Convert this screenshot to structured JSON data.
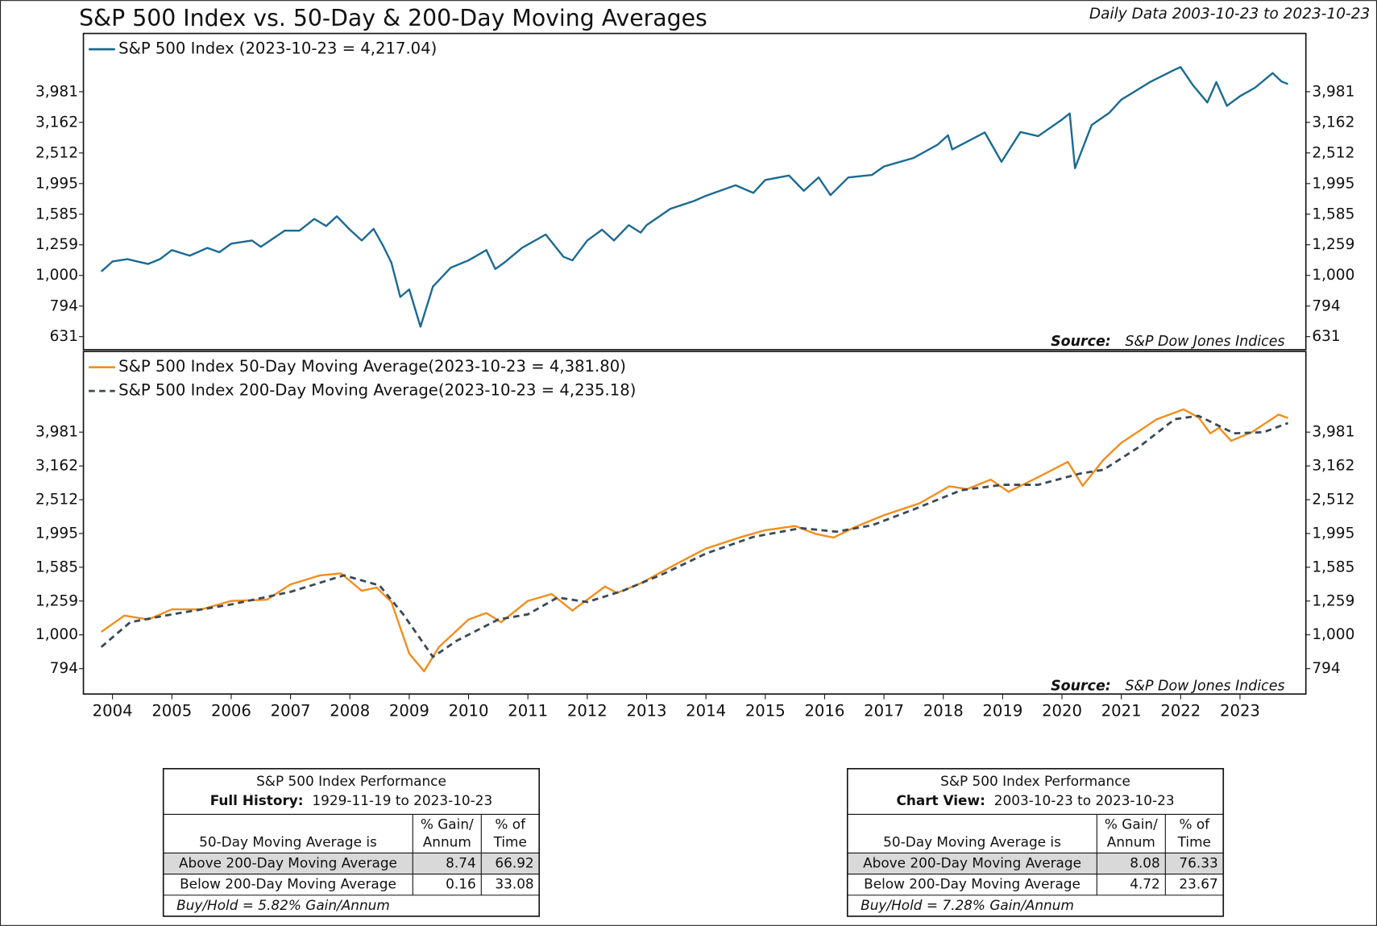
{
  "header": {
    "title": "S&P 500 Index vs. 50-Day & 200-Day Moving Averages",
    "subtitle": "Daily Data 2003-10-23 to 2023-10-23"
  },
  "chart_data": [
    {
      "type": "line",
      "yscale": "log",
      "xlim": [
        2003.51,
        2024.11
      ],
      "ylim": [
        572,
        6170
      ],
      "yticks": [
        631,
        794,
        {
          "value": 1000,
          "label": "1,000"
        },
        {
          "value": 1259,
          "label": "1,259"
        },
        {
          "value": 1585,
          "label": "1,585"
        },
        {
          "value": 1995,
          "label": "1,995"
        },
        {
          "value": 2512,
          "label": "2,512"
        },
        {
          "value": 3162,
          "label": "3,162"
        },
        {
          "value": 3981,
          "label": "3,981"
        }
      ],
      "source_label": "Source:",
      "source": "S&P Dow Jones Indices",
      "series": [
        {
          "name": "S&P 500 Index (2023-10-23 = 4,217.04)",
          "color": "#1b6a92",
          "style": "solid",
          "x": [
            2003.81,
            2004.0,
            2004.25,
            2004.6,
            2004.8,
            2005.0,
            2005.3,
            2005.6,
            2005.8,
            2006.0,
            2006.35,
            2006.5,
            2006.9,
            2007.15,
            2007.4,
            2007.6,
            2007.78,
            2008.0,
            2008.2,
            2008.4,
            2008.55,
            2008.7,
            2008.85,
            2009.0,
            2009.19,
            2009.4,
            2009.7,
            2010.0,
            2010.3,
            2010.45,
            2010.6,
            2010.9,
            2011.3,
            2011.6,
            2011.75,
            2012.0,
            2012.25,
            2012.45,
            2012.7,
            2012.9,
            2013.0,
            2013.4,
            2013.8,
            2014.0,
            2014.5,
            2014.8,
            2015.0,
            2015.4,
            2015.65,
            2015.9,
            2016.1,
            2016.4,
            2016.8,
            2017.0,
            2017.5,
            2017.9,
            2018.08,
            2018.15,
            2018.7,
            2018.98,
            2019.3,
            2019.6,
            2020.0,
            2020.13,
            2020.22,
            2020.5,
            2020.8,
            2021.0,
            2021.5,
            2021.9,
            2022.0,
            2022.2,
            2022.45,
            2022.6,
            2022.78,
            2023.0,
            2023.25,
            2023.55,
            2023.7,
            2023.81
          ],
          "values": [
            1030,
            1110,
            1130,
            1090,
            1130,
            1210,
            1160,
            1230,
            1190,
            1270,
            1300,
            1240,
            1400,
            1400,
            1530,
            1450,
            1560,
            1410,
            1300,
            1420,
            1260,
            1100,
            850,
            900,
            680,
            920,
            1060,
            1120,
            1210,
            1050,
            1100,
            1230,
            1360,
            1150,
            1120,
            1300,
            1410,
            1300,
            1460,
            1380,
            1460,
            1650,
            1750,
            1820,
            1970,
            1860,
            2050,
            2120,
            1890,
            2090,
            1830,
            2090,
            2130,
            2270,
            2420,
            2670,
            2870,
            2580,
            2930,
            2350,
            2940,
            2850,
            3230,
            3380,
            2240,
            3100,
            3400,
            3750,
            4300,
            4700,
            4790,
            4200,
            3670,
            4280,
            3580,
            3850,
            4100,
            4580,
            4300,
            4217
          ]
        }
      ]
    },
    {
      "type": "line",
      "yscale": "log",
      "xlim": [
        2003.51,
        2024.11
      ],
      "ylim": [
        668,
        6900
      ],
      "xticks": [
        2004,
        2005,
        2006,
        2007,
        2008,
        2009,
        2010,
        2011,
        2012,
        2013,
        2014,
        2015,
        2016,
        2017,
        2018,
        2019,
        2020,
        2021,
        2022,
        2023
      ],
      "yticks": [
        794,
        {
          "value": 1000,
          "label": "1,000"
        },
        {
          "value": 1259,
          "label": "1,259"
        },
        {
          "value": 1585,
          "label": "1,585"
        },
        {
          "value": 1995,
          "label": "1,995"
        },
        {
          "value": 2512,
          "label": "2,512"
        },
        {
          "value": 3162,
          "label": "3,162"
        },
        {
          "value": 3981,
          "label": "3,981"
        }
      ],
      "source_label": "Source:",
      "source": "S&P Dow Jones Indices",
      "series": [
        {
          "name": "S&P 500 Index 50-Day Moving Average(2023-10-23 = 4,381.80)",
          "color": "#f28e1c",
          "style": "solid",
          "x": [
            2003.81,
            2004.2,
            2004.6,
            2005.0,
            2005.5,
            2006.0,
            2006.6,
            2007.0,
            2007.5,
            2007.85,
            2008.2,
            2008.45,
            2008.7,
            2009.0,
            2009.25,
            2009.5,
            2010.0,
            2010.3,
            2010.55,
            2011.0,
            2011.4,
            2011.75,
            2012.3,
            2012.5,
            2012.9,
            2013.5,
            2014.0,
            2014.6,
            2015.0,
            2015.5,
            2015.85,
            2016.15,
            2016.5,
            2017.0,
            2017.6,
            2018.1,
            2018.4,
            2018.8,
            2019.1,
            2019.6,
            2020.1,
            2020.35,
            2020.7,
            2021.0,
            2021.6,
            2022.05,
            2022.3,
            2022.5,
            2022.65,
            2022.85,
            2023.2,
            2023.65,
            2023.81
          ],
          "values": [
            1020,
            1140,
            1110,
            1190,
            1190,
            1260,
            1270,
            1410,
            1500,
            1520,
            1350,
            1380,
            1250,
            880,
            780,
            920,
            1110,
            1160,
            1090,
            1260,
            1320,
            1180,
            1390,
            1330,
            1420,
            1620,
            1800,
            1950,
            2040,
            2100,
            1990,
            1940,
            2080,
            2260,
            2450,
            2750,
            2700,
            2880,
            2650,
            2930,
            3250,
            2760,
            3300,
            3700,
            4350,
            4650,
            4400,
            3950,
            4100,
            3750,
            3980,
            4490,
            4382
          ]
        },
        {
          "name": "S&P 500 Index 200-Day Moving Average(2023-10-23 = 4,235.18)",
          "color": "#3b4a58",
          "style": "dashed",
          "x": [
            2003.81,
            2004.3,
            2005.0,
            2006.0,
            2007.0,
            2007.9,
            2008.5,
            2008.9,
            2009.4,
            2009.8,
            2010.5,
            2011.0,
            2011.5,
            2012.0,
            2012.6,
            2013.3,
            2014.0,
            2014.8,
            2015.6,
            2016.2,
            2016.8,
            2017.5,
            2018.3,
            2019.0,
            2019.6,
            2020.3,
            2020.7,
            2021.3,
            2021.9,
            2022.3,
            2022.9,
            2023.4,
            2023.81
          ],
          "values": [
            920,
            1090,
            1150,
            1230,
            1340,
            1500,
            1400,
            1150,
            860,
            960,
            1110,
            1150,
            1290,
            1250,
            1350,
            1520,
            1740,
            1950,
            2070,
            2020,
            2110,
            2350,
            2680,
            2780,
            2780,
            3000,
            3080,
            3600,
            4350,
            4450,
            3950,
            3980,
            4235
          ]
        }
      ]
    }
  ],
  "tables": [
    {
      "title": "S&P 500 Index Performance",
      "period_label": "Full History:",
      "period": "1929-11-19 to 2023-10-23",
      "header": [
        [
          "50-Day Moving Average is"
        ],
        [
          "% Gain/",
          "Annum"
        ],
        [
          "% of",
          "Time"
        ]
      ],
      "rows": [
        [
          "Above 200-Day Moving Average",
          "8.74",
          "66.92"
        ],
        [
          "Below 200-Day Moving Average",
          "0.16",
          "33.08"
        ]
      ],
      "footnote": "Buy/Hold = 5.82% Gain/Annum"
    },
    {
      "title": "S&P 500 Index Performance",
      "period_label": "Chart View:",
      "period": "2003-10-23 to 2023-10-23",
      "header": [
        [
          "50-Day Moving Average is"
        ],
        [
          "% Gain/",
          "Annum"
        ],
        [
          "% of",
          "Time"
        ]
      ],
      "rows": [
        [
          "Above 200-Day Moving Average",
          "8.08",
          "76.33"
        ],
        [
          "Below 200-Day Moving Average",
          "4.72",
          "23.67"
        ]
      ],
      "footnote": "Buy/Hold = 7.28% Gain/Annum"
    }
  ]
}
